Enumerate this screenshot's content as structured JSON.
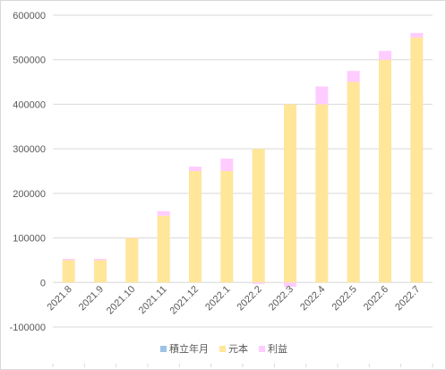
{
  "chart_data": {
    "type": "bar",
    "stacked": true,
    "categories": [
      "2021.8",
      "2021.9",
      "2021.10",
      "2021.11",
      "2021.12",
      "2022.1",
      "2022.2",
      "2022.3",
      "2022.4",
      "2022.5",
      "2022.6",
      "2022.7"
    ],
    "series": [
      {
        "name": "積立年月",
        "color": "#9dc3e6",
        "values": [
          0,
          0,
          0,
          0,
          0,
          0,
          0,
          0,
          0,
          0,
          0,
          0
        ]
      },
      {
        "name": "元本",
        "color": "#ffe699",
        "values": [
          50000,
          50000,
          100000,
          150000,
          250000,
          250000,
          300000,
          400000,
          400000,
          450000,
          500000,
          550000
        ]
      },
      {
        "name": "利益",
        "color": "#ffccff",
        "values": [
          3000,
          3000,
          1000,
          10000,
          10000,
          28000,
          -3000,
          -10000,
          40000,
          25000,
          20000,
          10000
        ]
      }
    ],
    "ylim": [
      -100000,
      600000
    ],
    "yticks": [
      "-100000",
      "0",
      "100000",
      "200000",
      "300000",
      "400000",
      "500000",
      "600000"
    ],
    "grid": true,
    "legend_position": "bottom"
  }
}
